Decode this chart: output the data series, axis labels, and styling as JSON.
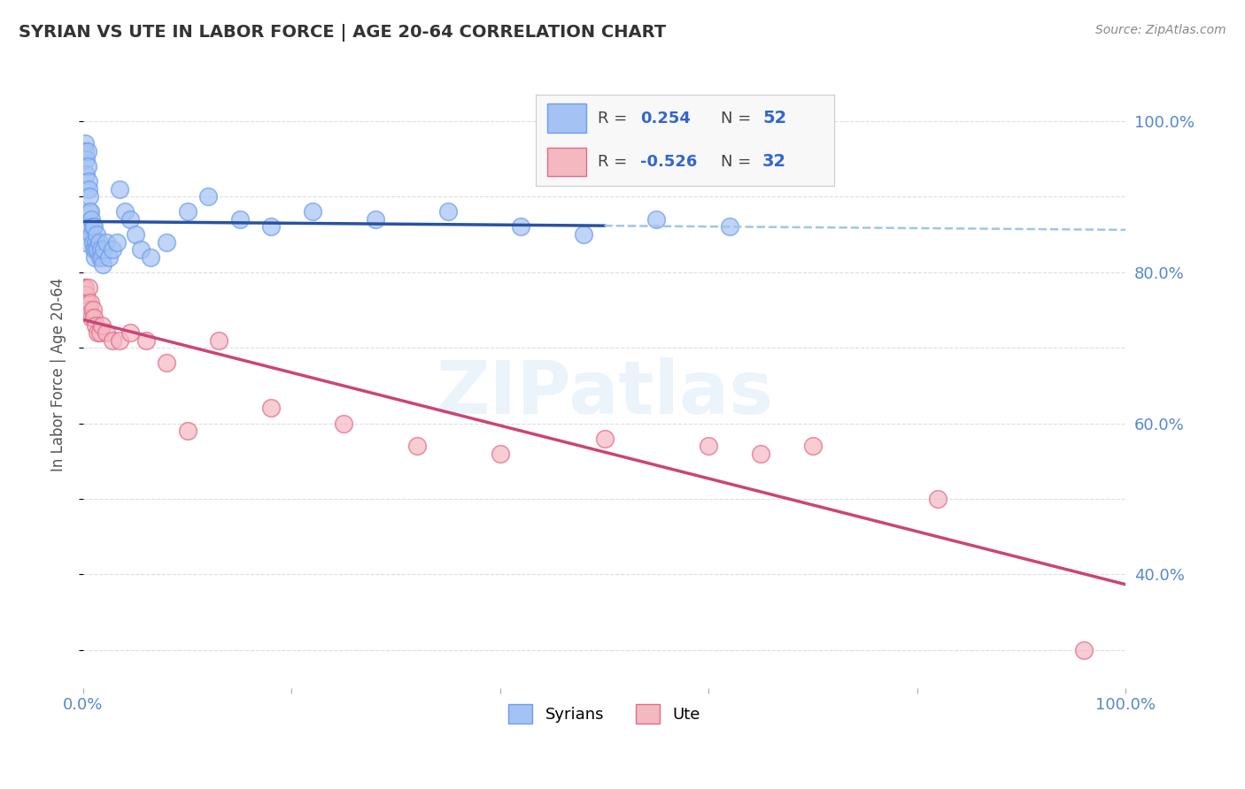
{
  "title": "SYRIAN VS UTE IN LABOR FORCE | AGE 20-64 CORRELATION CHART",
  "source": "Source: ZipAtlas.com",
  "ylabel": "In Labor Force | Age 20-64",
  "xlim": [
    0.0,
    1.0
  ],
  "ylim": [
    0.25,
    1.08
  ],
  "x_ticks": [
    0.0,
    0.2,
    0.4,
    0.6,
    0.8,
    1.0
  ],
  "x_tick_labels": [
    "0.0%",
    "",
    "",
    "",
    "",
    "100.0%"
  ],
  "y_tick_labels_right": [
    "100.0%",
    "80.0%",
    "60.0%",
    "40.0%"
  ],
  "y_ticks_right": [
    1.0,
    0.8,
    0.6,
    0.4
  ],
  "syrians_color": "#a4c2f4",
  "syrians_edge_color": "#6d9eeb",
  "ute_color": "#f4b8c1",
  "ute_edge_color": "#e06c8a",
  "syrians_line_color": "#2952a3",
  "ute_line_color": "#cc4477",
  "dashed_line_color": "#9fc5e8",
  "watermark_text": "ZIPatlas",
  "legend_R_syrian": "0.254",
  "legend_N_syrian": "52",
  "legend_R_ute": "-0.526",
  "legend_N_ute": "32",
  "syrians_x": [
    0.001,
    0.002,
    0.002,
    0.003,
    0.003,
    0.004,
    0.004,
    0.005,
    0.005,
    0.006,
    0.006,
    0.007,
    0.007,
    0.008,
    0.008,
    0.009,
    0.009,
    0.01,
    0.01,
    0.011,
    0.012,
    0.012,
    0.013,
    0.014,
    0.015,
    0.016,
    0.017,
    0.018,
    0.019,
    0.02,
    0.022,
    0.025,
    0.028,
    0.032,
    0.035,
    0.04,
    0.045,
    0.05,
    0.055,
    0.065,
    0.08,
    0.1,
    0.12,
    0.15,
    0.18,
    0.22,
    0.28,
    0.35,
    0.42,
    0.48,
    0.55,
    0.62
  ],
  "syrians_y": [
    0.84,
    0.97,
    0.96,
    0.95,
    0.93,
    0.96,
    0.94,
    0.92,
    0.91,
    0.88,
    0.9,
    0.86,
    0.88,
    0.85,
    0.87,
    0.86,
    0.84,
    0.83,
    0.86,
    0.82,
    0.84,
    0.83,
    0.85,
    0.83,
    0.84,
    0.82,
    0.83,
    0.82,
    0.81,
    0.83,
    0.84,
    0.82,
    0.83,
    0.84,
    0.91,
    0.88,
    0.87,
    0.85,
    0.83,
    0.82,
    0.84,
    0.88,
    0.9,
    0.87,
    0.86,
    0.88,
    0.87,
    0.88,
    0.86,
    0.85,
    0.87,
    0.86
  ],
  "ute_x": [
    0.001,
    0.002,
    0.003,
    0.004,
    0.005,
    0.006,
    0.007,
    0.008,
    0.009,
    0.01,
    0.012,
    0.014,
    0.016,
    0.018,
    0.022,
    0.028,
    0.035,
    0.045,
    0.06,
    0.08,
    0.1,
    0.13,
    0.18,
    0.25,
    0.32,
    0.4,
    0.5,
    0.6,
    0.65,
    0.7,
    0.82,
    0.96
  ],
  "ute_y": [
    0.78,
    0.78,
    0.77,
    0.76,
    0.78,
    0.75,
    0.76,
    0.74,
    0.75,
    0.74,
    0.73,
    0.72,
    0.72,
    0.73,
    0.72,
    0.71,
    0.71,
    0.72,
    0.71,
    0.68,
    0.59,
    0.71,
    0.62,
    0.6,
    0.57,
    0.56,
    0.58,
    0.57,
    0.56,
    0.57,
    0.5,
    0.3
  ],
  "background_color": "#ffffff",
  "grid_color": "#dddddd",
  "scatter_size": 200
}
